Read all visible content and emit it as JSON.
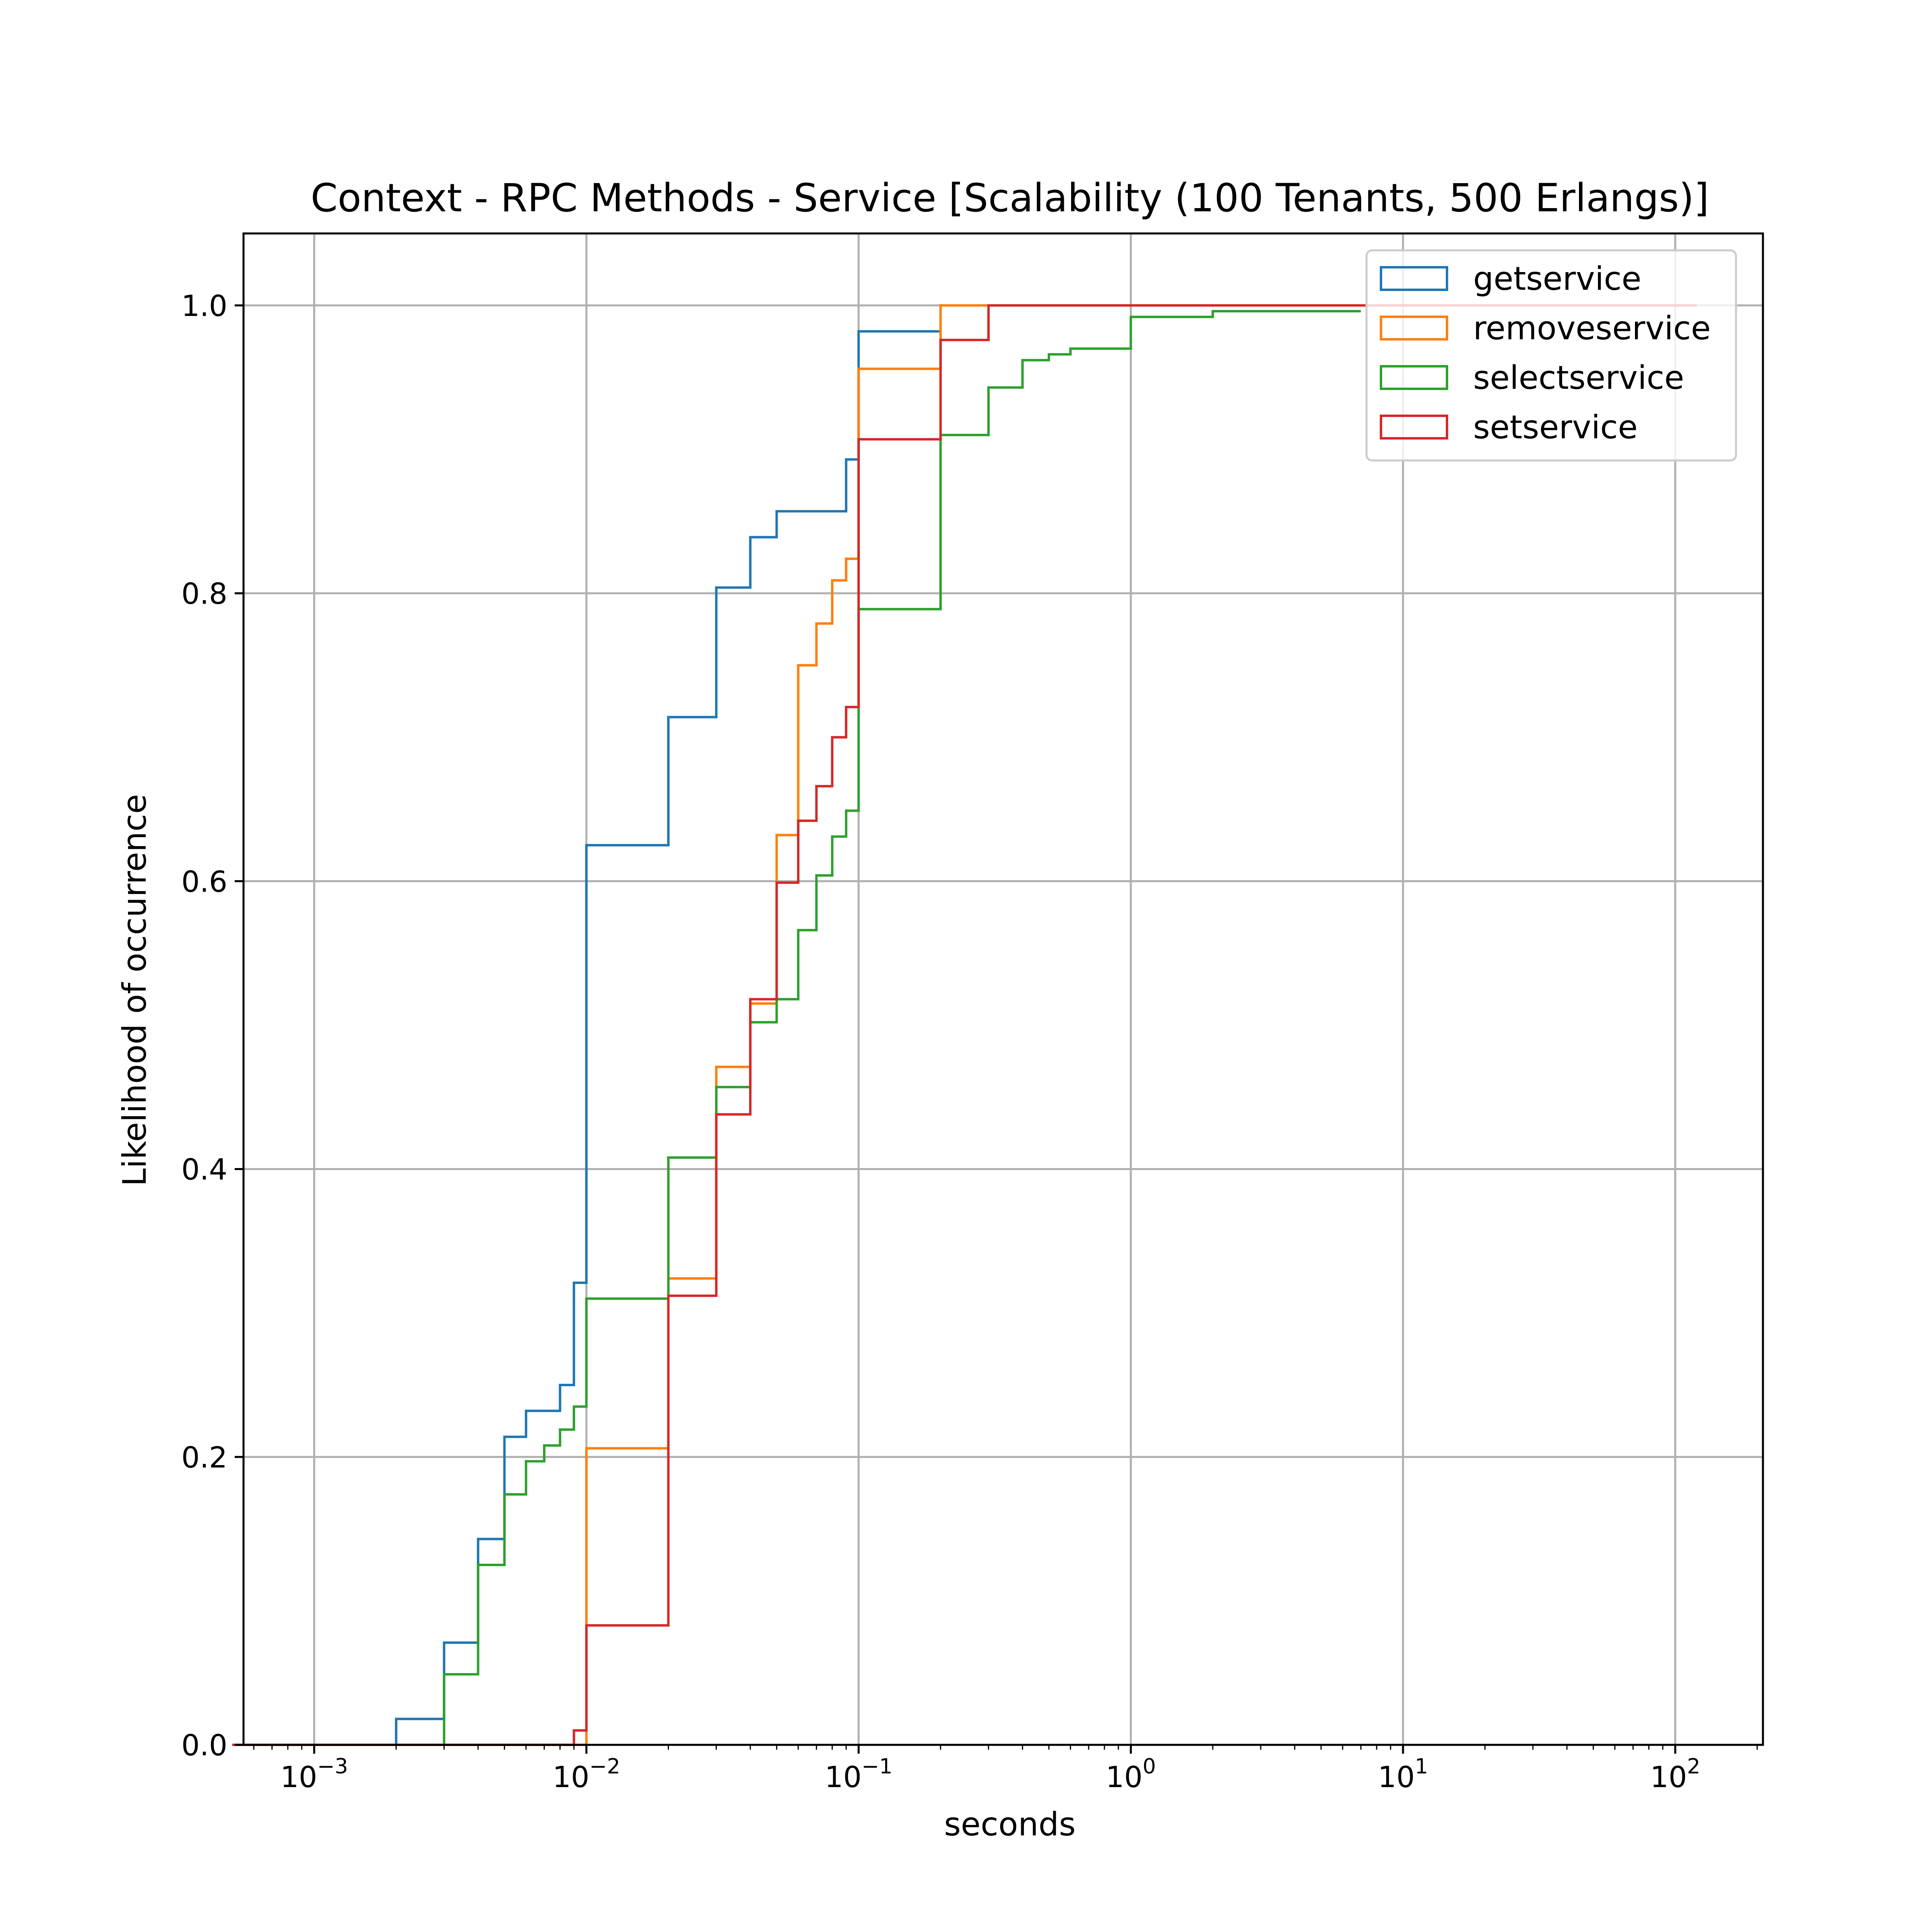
{
  "chart_data": {
    "type": "line",
    "step": true,
    "title": "Context - RPC Methods - Service [Scalability (100 Tenants, 500 Erlangs)]",
    "xlabel": "seconds",
    "ylabel": "Likelihood of occurrence",
    "xscale": "log",
    "xlim": [
      0.00055,
      210
    ],
    "ylim": [
      0,
      1.05
    ],
    "xticks": [
      {
        "value": 0.001,
        "base": "10",
        "exp": "−3"
      },
      {
        "value": 0.01,
        "base": "10",
        "exp": "−2"
      },
      {
        "value": 0.1,
        "base": "10",
        "exp": "−1"
      },
      {
        "value": 1,
        "base": "10",
        "exp": "0"
      },
      {
        "value": 10,
        "base": "10",
        "exp": "1"
      },
      {
        "value": 100,
        "base": "10",
        "exp": "2"
      }
    ],
    "yticks": [
      {
        "value": 0.0,
        "label": "0.0"
      },
      {
        "value": 0.2,
        "label": "0.2"
      },
      {
        "value": 0.4,
        "label": "0.4"
      },
      {
        "value": 0.6,
        "label": "0.6"
      },
      {
        "value": 0.8,
        "label": "0.8"
      },
      {
        "value": 1.0,
        "label": "1.0"
      }
    ],
    "grid": true,
    "legend_position": "top-right",
    "series": [
      {
        "name": "getservice",
        "color": "#1f77b4",
        "x": [
          0.0005,
          0.001,
          0.002,
          0.003,
          0.004,
          0.005,
          0.006,
          0.008,
          0.009,
          0.01,
          0.02,
          0.03,
          0.04,
          0.05,
          0.09,
          0.1,
          0.2
        ],
        "y": [
          0.0,
          0.0,
          0.018,
          0.071,
          0.143,
          0.214,
          0.232,
          0.25,
          0.321,
          0.625,
          0.714,
          0.804,
          0.839,
          0.857,
          0.893,
          0.982,
          0.982
        ]
      },
      {
        "name": "removeservice",
        "color": "#ff7f0e",
        "x": [
          0.0005,
          0.001,
          0.01,
          0.02,
          0.03,
          0.04,
          0.05,
          0.06,
          0.07,
          0.08,
          0.09,
          0.1,
          0.2,
          0.3
        ],
        "y": [
          0.0,
          0.0,
          0.206,
          0.324,
          0.471,
          0.515,
          0.632,
          0.75,
          0.779,
          0.809,
          0.824,
          0.956,
          1.0,
          1.0
        ]
      },
      {
        "name": "selectservice",
        "color": "#2ca02c",
        "x": [
          0.0005,
          0.001,
          0.003,
          0.004,
          0.005,
          0.006,
          0.007,
          0.008,
          0.009,
          0.01,
          0.02,
          0.03,
          0.04,
          0.05,
          0.06,
          0.07,
          0.08,
          0.09,
          0.1,
          0.2,
          0.3,
          0.4,
          0.5,
          0.6,
          1.0,
          2.0,
          7.0
        ],
        "y": [
          0.0,
          0.0,
          0.049,
          0.125,
          0.174,
          0.197,
          0.208,
          0.219,
          0.235,
          0.31,
          0.408,
          0.457,
          0.502,
          0.518,
          0.566,
          0.604,
          0.631,
          0.649,
          0.789,
          0.91,
          0.943,
          0.962,
          0.966,
          0.97,
          0.992,
          0.996,
          0.996
        ]
      },
      {
        "name": "setservice",
        "color": "#d62728",
        "x": [
          0.0005,
          0.001,
          0.009,
          0.01,
          0.02,
          0.03,
          0.04,
          0.05,
          0.06,
          0.07,
          0.08,
          0.09,
          0.1,
          0.2,
          0.3,
          120
        ],
        "y": [
          0.0,
          0.0,
          0.01,
          0.083,
          0.312,
          0.438,
          0.518,
          0.599,
          0.642,
          0.666,
          0.7,
          0.721,
          0.907,
          0.976,
          1.0,
          1.0
        ]
      }
    ]
  }
}
